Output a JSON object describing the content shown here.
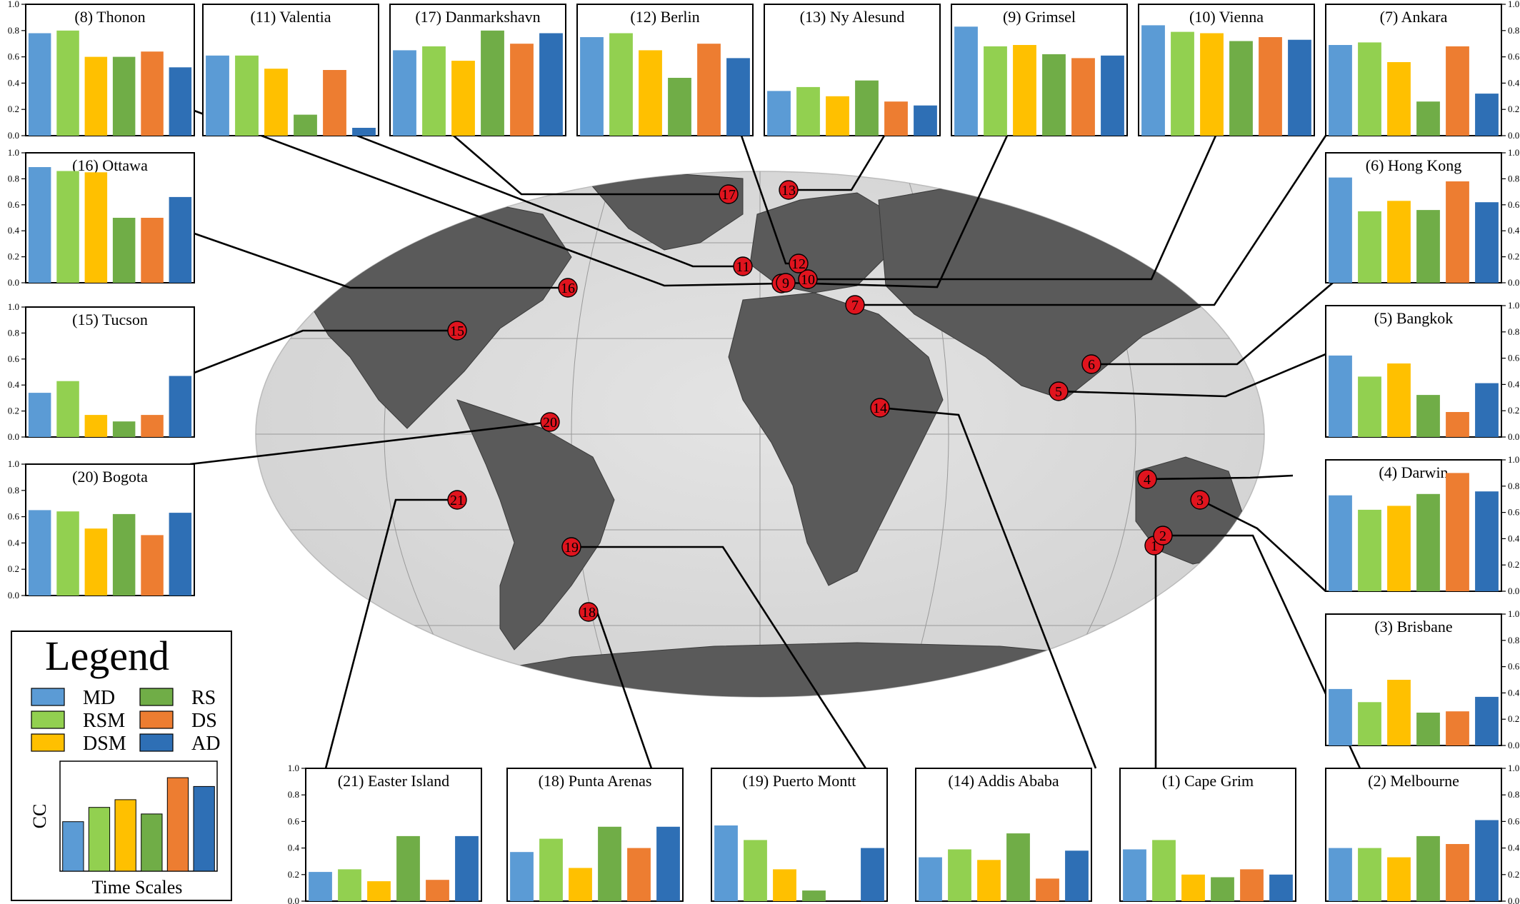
{
  "series_names": [
    "MD",
    "RSM",
    "DSM",
    "RS",
    "DS",
    "AD"
  ],
  "series_colors": [
    "#5B9BD5",
    "#92D050",
    "#FFC000",
    "#70AD47",
    "#ED7D31",
    "#2E6FB5"
  ],
  "legend": {
    "title": "Legend",
    "ylabel": "CC",
    "xlabel": "Time Scales",
    "example_values": [
      0.45,
      0.58,
      0.65,
      0.52,
      0.85,
      0.77
    ]
  },
  "chart_data": [
    {
      "type": "bar",
      "id": 8,
      "title": "(8) Thonon",
      "ylim": [
        0,
        1
      ],
      "yticks": [
        "0.0",
        "0.2",
        "0.4",
        "0.6",
        "0.8",
        "1.0"
      ],
      "values": [
        0.78,
        0.8,
        0.6,
        0.6,
        0.64,
        0.52
      ]
    },
    {
      "type": "bar",
      "id": 11,
      "title": "(11) Valentia",
      "ylim": [
        0,
        1
      ],
      "yticks": [
        "0.0",
        "0.2",
        "0.4",
        "0.6",
        "0.8",
        "1.0"
      ],
      "values": [
        0.61,
        0.61,
        0.51,
        0.16,
        0.5,
        0.06
      ]
    },
    {
      "type": "bar",
      "id": 17,
      "title": "(17) Danmarkshavn",
      "ylim": [
        0,
        1
      ],
      "yticks": [
        "0.0",
        "0.2",
        "0.4",
        "0.6",
        "0.8",
        "1.0"
      ],
      "values": [
        0.65,
        0.68,
        0.57,
        0.8,
        0.7,
        0.78
      ]
    },
    {
      "type": "bar",
      "id": 12,
      "title": "(12) Berlin",
      "ylim": [
        0,
        1
      ],
      "yticks": [
        "0.0",
        "0.2",
        "0.4",
        "0.6",
        "0.8",
        "1.0"
      ],
      "values": [
        0.75,
        0.78,
        0.65,
        0.44,
        0.7,
        0.59
      ]
    },
    {
      "type": "bar",
      "id": 13,
      "title": "(13) Ny Alesund",
      "ylim": [
        0,
        1
      ],
      "yticks": [
        "0.0",
        "0.2",
        "0.4",
        "0.6",
        "0.8",
        "1.0"
      ],
      "values": [
        0.34,
        0.37,
        0.3,
        0.42,
        0.26,
        0.23
      ]
    },
    {
      "type": "bar",
      "id": 9,
      "title": "(9) Grimsel",
      "ylim": [
        0,
        1
      ],
      "yticks": [
        "0.0",
        "0.2",
        "0.4",
        "0.6",
        "0.8",
        "1.0"
      ],
      "values": [
        0.83,
        0.68,
        0.69,
        0.62,
        0.59,
        0.61
      ]
    },
    {
      "type": "bar",
      "id": 10,
      "title": "(10) Vienna",
      "ylim": [
        0,
        1
      ],
      "yticks": [
        "0.0",
        "0.2",
        "0.4",
        "0.6",
        "0.8",
        "1.0"
      ],
      "values": [
        0.84,
        0.79,
        0.78,
        0.72,
        0.75,
        0.73
      ]
    },
    {
      "type": "bar",
      "id": 7,
      "title": "(7) Ankara",
      "ylim": [
        0,
        1
      ],
      "yticks": [
        "0.0",
        "0.2",
        "0.4",
        "0.6",
        "0.8",
        "1.0"
      ],
      "values": [
        0.69,
        0.71,
        0.56,
        0.26,
        0.68,
        0.32
      ]
    },
    {
      "type": "bar",
      "id": 16,
      "title": "(16) Ottawa",
      "ylim": [
        0,
        1
      ],
      "yticks": [
        "0.0",
        "0.2",
        "0.4",
        "0.6",
        "0.8",
        "1.0"
      ],
      "values": [
        0.89,
        0.86,
        0.85,
        0.5,
        0.5,
        0.66
      ]
    },
    {
      "type": "bar",
      "id": 6,
      "title": "(6) Hong Kong",
      "ylim": [
        0,
        1
      ],
      "yticks": [
        "0.0",
        "0.2",
        "0.4",
        "0.6",
        "0.8",
        "1.0"
      ],
      "values": [
        0.81,
        0.55,
        0.63,
        0.56,
        0.78,
        0.62
      ]
    },
    {
      "type": "bar",
      "id": 15,
      "title": "(15) Tucson",
      "ylim": [
        0,
        1
      ],
      "yticks": [
        "0.0",
        "0.2",
        "0.4",
        "0.6",
        "0.8",
        "1.0"
      ],
      "values": [
        0.34,
        0.43,
        0.17,
        0.12,
        0.17,
        0.47
      ]
    },
    {
      "type": "bar",
      "id": 5,
      "title": "(5) Bangkok",
      "ylim": [
        0,
        1
      ],
      "yticks": [
        "0.0",
        "0.2",
        "0.4",
        "0.6",
        "0.8",
        "1.0"
      ],
      "values": [
        0.62,
        0.46,
        0.56,
        0.32,
        0.19,
        0.41
      ]
    },
    {
      "type": "bar",
      "id": 20,
      "title": "(20) Bogota",
      "ylim": [
        0,
        1
      ],
      "yticks": [
        "0.0",
        "0.2",
        "0.4",
        "0.6",
        "0.8",
        "1.0"
      ],
      "values": [
        0.65,
        0.64,
        0.51,
        0.62,
        0.46,
        0.63
      ]
    },
    {
      "type": "bar",
      "id": 4,
      "title": "(4) Darwin",
      "ylim": [
        0,
        1
      ],
      "yticks": [
        "0.0",
        "0.2",
        "0.4",
        "0.6",
        "0.8",
        "1.0"
      ],
      "values": [
        0.73,
        0.62,
        0.65,
        0.74,
        0.9,
        0.76
      ]
    },
    {
      "type": "bar",
      "id": 3,
      "title": "(3) Brisbane",
      "ylim": [
        0,
        1
      ],
      "yticks": [
        "0.0",
        "0.2",
        "0.4",
        "0.6",
        "0.8",
        "1.0"
      ],
      "values": [
        0.43,
        0.33,
        0.5,
        0.25,
        0.26,
        0.37
      ]
    },
    {
      "type": "bar",
      "id": 21,
      "title": "(21) Easter Island",
      "ylim": [
        0,
        1
      ],
      "yticks": [
        "0.0",
        "0.2",
        "0.4",
        "0.6",
        "0.8",
        "1.0"
      ],
      "values": [
        0.22,
        0.24,
        0.15,
        0.49,
        0.16,
        0.49
      ]
    },
    {
      "type": "bar",
      "id": 18,
      "title": "(18) Punta Arenas",
      "ylim": [
        0,
        1
      ],
      "yticks": [
        "0.0",
        "0.2",
        "0.4",
        "0.6",
        "0.8",
        "1.0"
      ],
      "values": [
        0.37,
        0.47,
        0.25,
        0.56,
        0.4,
        0.56
      ]
    },
    {
      "type": "bar",
      "id": 19,
      "title": "(19) Puerto Montt",
      "ylim": [
        0,
        1
      ],
      "yticks": [
        "0.0",
        "0.2",
        "0.4",
        "0.6",
        "0.8",
        "1.0"
      ],
      "values": [
        0.57,
        0.46,
        0.24,
        0.08,
        0.0,
        0.4
      ]
    },
    {
      "type": "bar",
      "id": 14,
      "title": "(14) Addis Ababa",
      "ylim": [
        0,
        1
      ],
      "yticks": [
        "0.0",
        "0.2",
        "0.4",
        "0.6",
        "0.8",
        "1.0"
      ],
      "values": [
        0.33,
        0.39,
        0.31,
        0.51,
        0.17,
        0.38
      ]
    },
    {
      "type": "bar",
      "id": 1,
      "title": "(1) Cape Grim",
      "ylim": [
        0,
        1
      ],
      "yticks": [
        "0.0",
        "0.2",
        "0.4",
        "0.6",
        "0.8",
        "1.0"
      ],
      "values": [
        0.39,
        0.46,
        0.2,
        0.18,
        0.24,
        0.2
      ]
    },
    {
      "type": "bar",
      "id": 2,
      "title": "(2) Melbourne",
      "ylim": [
        0,
        1
      ],
      "yticks": [
        "0.0",
        "0.2",
        "0.4",
        "0.6",
        "0.8",
        "1.0"
      ],
      "values": [
        0.4,
        0.4,
        0.33,
        0.49,
        0.43,
        0.61
      ]
    }
  ],
  "map_markers": [
    {
      "id": 1,
      "label": "1"
    },
    {
      "id": 2,
      "label": "2"
    },
    {
      "id": 3,
      "label": "3"
    },
    {
      "id": 4,
      "label": "4"
    },
    {
      "id": 5,
      "label": "5"
    },
    {
      "id": 6,
      "label": "6"
    },
    {
      "id": 7,
      "label": "7"
    },
    {
      "id": 8,
      "label": "8"
    },
    {
      "id": 9,
      "label": "9"
    },
    {
      "id": 10,
      "label": "10"
    },
    {
      "id": 11,
      "label": "11"
    },
    {
      "id": 12,
      "label": "12"
    },
    {
      "id": 13,
      "label": "13"
    },
    {
      "id": 14,
      "label": "14"
    },
    {
      "id": 15,
      "label": "15"
    },
    {
      "id": 16,
      "label": "16"
    },
    {
      "id": 17,
      "label": "17"
    },
    {
      "id": 18,
      "label": "18"
    },
    {
      "id": 19,
      "label": "19"
    },
    {
      "id": 20,
      "label": "20"
    },
    {
      "id": 21,
      "label": "21"
    }
  ]
}
